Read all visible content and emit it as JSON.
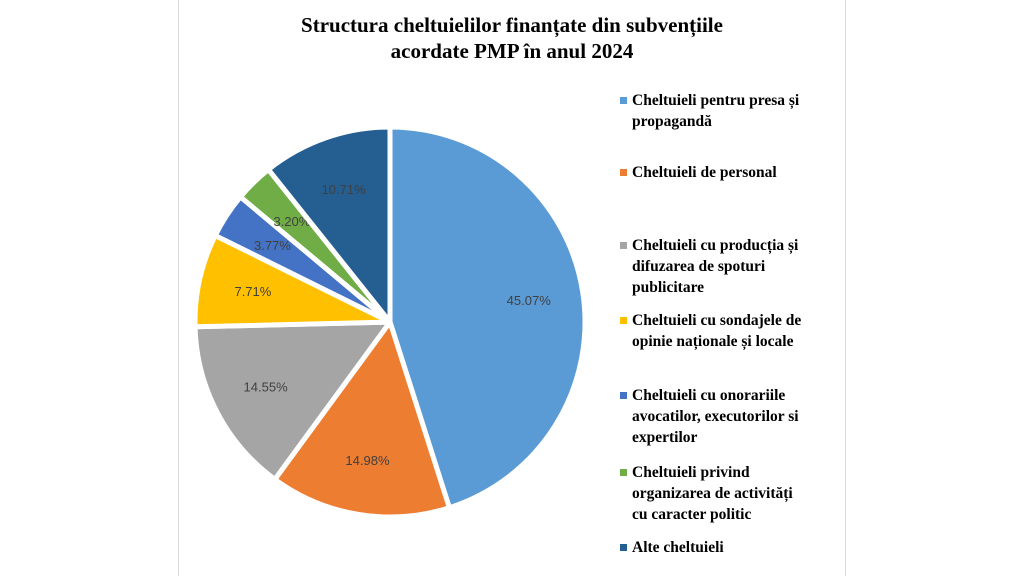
{
  "chart_data": {
    "type": "pie",
    "title_lines": [
      "Structura cheltuielilor finanțate din subvențiile",
      "acordate PMP în anul 2024"
    ],
    "slices": [
      {
        "name": "Cheltuieli pentru presa și propagandă",
        "value": 45.07,
        "label": "45.07%",
        "color": "#5b9bd5",
        "exploded": false
      },
      {
        "name": "Cheltuieli de personal",
        "value": 14.98,
        "label": "14.98%",
        "color": "#ed7d31",
        "exploded": false
      },
      {
        "name": "Cheltuieli cu producția și difuzarea de spoturi publicitare",
        "value": 14.55,
        "label": "14.55%",
        "color": "#a5a5a5",
        "exploded": false
      },
      {
        "name": "Cheltuieli cu sondajele de opinie naționale și locale",
        "value": 7.71,
        "label": "7.71%",
        "color": "#ffc000",
        "exploded": false
      },
      {
        "name": "Cheltuieli cu onorariile avocatilor, executorilor si expertilor",
        "value": 3.77,
        "label": "3.77%",
        "color": "#4472c4",
        "exploded": false
      },
      {
        "name": "Cheltuieli privind organizarea de activități cu caracter politic",
        "value": 3.2,
        "label": "3.20%",
        "color": "#70ad47",
        "exploded": false
      },
      {
        "name": "Alte cheltuieli",
        "value": 10.71,
        "label": "10.71%",
        "color": "#255e91",
        "exploded": false
      }
    ],
    "legend_position": "right",
    "legend_lines": [
      [
        "Cheltuieli pentru presa și",
        "propagandă"
      ],
      [
        "Cheltuieli de personal"
      ],
      [
        "Cheltuieli cu producția și",
        "difuzarea de spoturi",
        "publicitare"
      ],
      [
        "Cheltuieli cu sondajele de",
        "opinie naționale și locale"
      ],
      [
        "Cheltuieli cu onorariile",
        "avocatilor, executorilor si",
        "expertilor"
      ],
      [
        "Cheltuieli privind",
        "organizarea de activități",
        "cu caracter politic"
      ],
      [
        "Alte cheltuieli"
      ]
    ]
  }
}
